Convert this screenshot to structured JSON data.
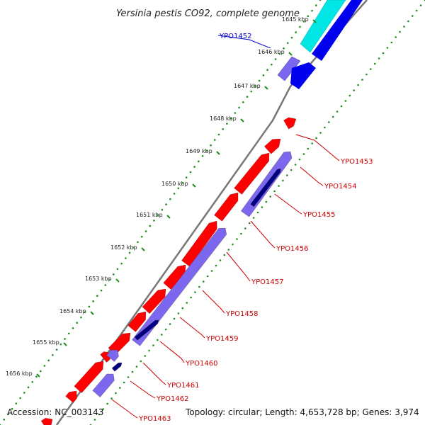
{
  "title": "Yersinia pestis CO92, complete genome",
  "footer": {
    "accession": "Accession: NC_003143",
    "topology": "Topology: circular; Length: 4,653,728 bp; Genes: 3,974"
  },
  "colors": {
    "backbone": "#888888",
    "forward_gene": "#ff0000",
    "reverse_gene": "#7b68ee",
    "reverse_gene_dark": "#000080",
    "cyan_block": "#00ffff",
    "blue_block": "#0000ee",
    "tick": "#228b22",
    "label_red": "#cc0000",
    "label_blue": "#0000cc"
  },
  "kbp_ticks": [
    {
      "label": "1645 kbp",
      "faded": true
    },
    {
      "label": "1646 kbp",
      "faded": false
    },
    {
      "label": "1647 kbp",
      "faded": false
    },
    {
      "label": "1648 kbp",
      "faded": false
    },
    {
      "label": "1649 kbp",
      "faded": false
    },
    {
      "label": "1650 kbp",
      "faded": false
    },
    {
      "label": "1651 kbp",
      "faded": false
    },
    {
      "label": "1652 kbp",
      "faded": false
    },
    {
      "label": "1653 kbp",
      "faded": false
    },
    {
      "label": "1654 kbp",
      "faded": false
    },
    {
      "label": "1655 kbp",
      "faded": false
    },
    {
      "label": "1656 kbp",
      "faded": false
    }
  ],
  "gene_labels": [
    {
      "name": "YPO1452",
      "color": "blue"
    },
    {
      "name": "YPO1453",
      "color": "red"
    },
    {
      "name": "YPO1454",
      "color": "red"
    },
    {
      "name": "YPO1455",
      "color": "red"
    },
    {
      "name": "YPO1456",
      "color": "red"
    },
    {
      "name": "YPO1457",
      "color": "red"
    },
    {
      "name": "YPO1458",
      "color": "red"
    },
    {
      "name": "YPO1459",
      "color": "red"
    },
    {
      "name": "YPO1460",
      "color": "red"
    },
    {
      "name": "YPO1461",
      "color": "red"
    },
    {
      "name": "YPO1462",
      "color": "red"
    },
    {
      "name": "YPO1463",
      "color": "red"
    }
  ]
}
